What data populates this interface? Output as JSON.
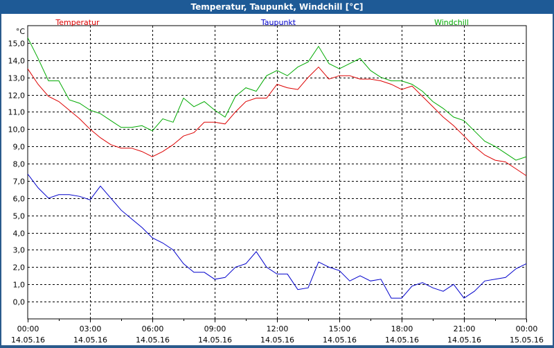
{
  "window": {
    "title": "Temperatur, Taupunkt, Windchill [°C]"
  },
  "colors": {
    "temperatur": "#dd0000",
    "taupunkt": "#0000cc",
    "windchill": "#00aa00",
    "grid": "#000000"
  },
  "chart_data": {
    "type": "line",
    "title": "Temperatur, Taupunkt, Windchill [°C]",
    "ylabel": "°C",
    "ylim": [
      -1.0,
      16.0
    ],
    "y_ticks": [
      "15,0",
      "14,0",
      "13,0",
      "12,0",
      "11,0",
      "10,0",
      "9,0",
      "8,0",
      "7,0",
      "6,0",
      "5,0",
      "4,0",
      "3,0",
      "2,0",
      "1,0",
      "0,0"
    ],
    "x_ticks": [
      {
        "time": "00:00",
        "date": "14.05.16"
      },
      {
        "time": "03:00",
        "date": "14.05.16"
      },
      {
        "time": "06:00",
        "date": "14.05.16"
      },
      {
        "time": "09:00",
        "date": "14.05.16"
      },
      {
        "time": "12:00",
        "date": "14.05.16"
      },
      {
        "time": "15:00",
        "date": "14.05.16"
      },
      {
        "time": "18:00",
        "date": "14.05.16"
      },
      {
        "time": "21:00",
        "date": "14.05.16"
      },
      {
        "time": "00:00",
        "date": "15.05.16"
      }
    ],
    "grid": true,
    "legend_position": "top",
    "xlim_hours": [
      0,
      24
    ],
    "series": [
      {
        "name": "Temperatur",
        "color": "#dd0000",
        "x": [
          0,
          0.5,
          1,
          1.5,
          2,
          2.5,
          3,
          3.5,
          4,
          4.5,
          5,
          5.5,
          6,
          6.5,
          7,
          7.5,
          8,
          8.5,
          9,
          9.5,
          10,
          10.5,
          11,
          11.5,
          12,
          12.5,
          13,
          13.5,
          14,
          14.5,
          15,
          15.5,
          16,
          16.5,
          17,
          17.5,
          18,
          18.5,
          19,
          19.5,
          20,
          20.5,
          21,
          21.5,
          22,
          22.5,
          23,
          23.5,
          24
        ],
        "values": [
          13.5,
          12.6,
          11.9,
          11.6,
          11.1,
          10.6,
          10.0,
          9.5,
          9.1,
          8.9,
          8.9,
          8.7,
          8.4,
          8.7,
          9.1,
          9.6,
          9.8,
          10.4,
          10.4,
          10.3,
          11.0,
          11.6,
          11.8,
          11.8,
          12.6,
          12.4,
          12.3,
          13.0,
          13.6,
          12.9,
          13.1,
          13.1,
          12.9,
          12.9,
          12.8,
          12.6,
          12.3,
          12.5,
          11.9,
          11.3,
          10.7,
          10.2,
          9.6,
          9.0,
          8.5,
          8.2,
          8.1,
          7.7,
          7.3
        ]
      },
      {
        "name": "Taupunkt",
        "color": "#0000cc",
        "x": [
          0,
          0.5,
          1,
          1.5,
          2,
          2.5,
          3,
          3.5,
          4,
          4.5,
          5,
          5.5,
          6,
          6.5,
          7,
          7.5,
          8,
          8.5,
          9,
          9.5,
          10,
          10.5,
          11,
          11.5,
          12,
          12.5,
          13,
          13.5,
          14,
          14.5,
          15,
          15.5,
          16,
          16.5,
          17,
          17.5,
          18,
          18.5,
          19,
          19.5,
          20,
          20.5,
          21,
          21.5,
          22,
          22.5,
          23,
          23.5,
          24
        ],
        "values": [
          7.4,
          6.6,
          6.0,
          6.2,
          6.2,
          6.1,
          5.9,
          6.7,
          6.0,
          5.3,
          4.8,
          4.3,
          3.7,
          3.4,
          3.0,
          2.2,
          1.7,
          1.7,
          1.3,
          1.4,
          2.0,
          2.2,
          2.9,
          2.0,
          1.6,
          1.6,
          0.7,
          0.8,
          2.3,
          2.0,
          1.8,
          1.2,
          1.5,
          1.2,
          1.3,
          0.2,
          0.2,
          0.9,
          1.1,
          0.8,
          0.6,
          1.0,
          0.2,
          0.6,
          1.2,
          1.3,
          1.4,
          1.9,
          2.2
        ]
      },
      {
        "name": "Windchill",
        "color": "#00aa00",
        "x": [
          0,
          0.5,
          1,
          1.5,
          2,
          2.5,
          3,
          3.5,
          4,
          4.5,
          5,
          5.5,
          6,
          6.5,
          7,
          7.5,
          8,
          8.5,
          9,
          9.5,
          10,
          10.5,
          11,
          11.5,
          12,
          12.5,
          13,
          13.5,
          14,
          14.5,
          15,
          15.5,
          16,
          16.5,
          17,
          17.5,
          18,
          18.5,
          19,
          19.5,
          20,
          20.5,
          21,
          21.5,
          22,
          22.5,
          23,
          23.5,
          24
        ],
        "values": [
          15.3,
          14.1,
          12.8,
          12.8,
          11.7,
          11.5,
          11.1,
          10.9,
          10.5,
          10.1,
          10.1,
          10.2,
          9.9,
          10.6,
          10.4,
          11.8,
          11.3,
          11.6,
          11.1,
          10.7,
          11.9,
          12.4,
          12.2,
          13.1,
          13.4,
          13.1,
          13.6,
          13.9,
          14.8,
          13.8,
          13.5,
          13.8,
          14.1,
          13.4,
          13.0,
          12.8,
          12.8,
          12.6,
          12.2,
          11.6,
          11.2,
          10.7,
          10.5,
          9.9,
          9.3,
          9.0,
          8.6,
          8.2,
          8.4
        ]
      }
    ]
  }
}
